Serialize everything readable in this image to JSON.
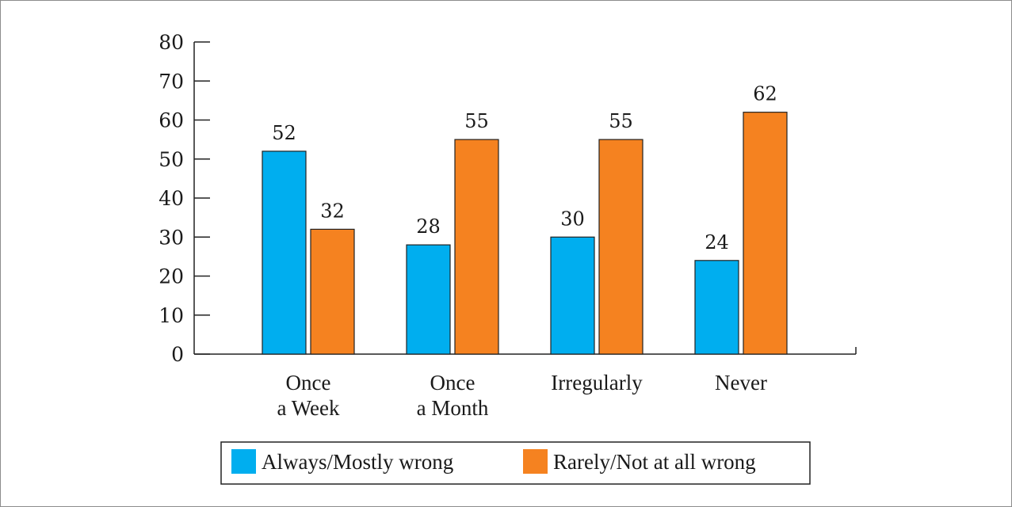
{
  "chart_data": {
    "type": "bar",
    "categories": [
      [
        "Once",
        "a Week"
      ],
      [
        "Once",
        "a Month"
      ],
      [
        "Irregularly"
      ],
      [
        "Never"
      ]
    ],
    "series": [
      {
        "name": "Always/Mostly wrong",
        "values": [
          52,
          28,
          30,
          24
        ],
        "color": "#00aeef"
      },
      {
        "name": "Rarely/Not at all wrong",
        "values": [
          32,
          55,
          55,
          62
        ],
        "color": "#f58220"
      }
    ],
    "title": "",
    "xlabel": "",
    "ylabel": "",
    "ylim": [
      0,
      80
    ],
    "yticks": [
      0,
      10,
      20,
      30,
      40,
      50,
      60,
      70,
      80
    ],
    "grid": false,
    "legend_position": "bottom"
  }
}
